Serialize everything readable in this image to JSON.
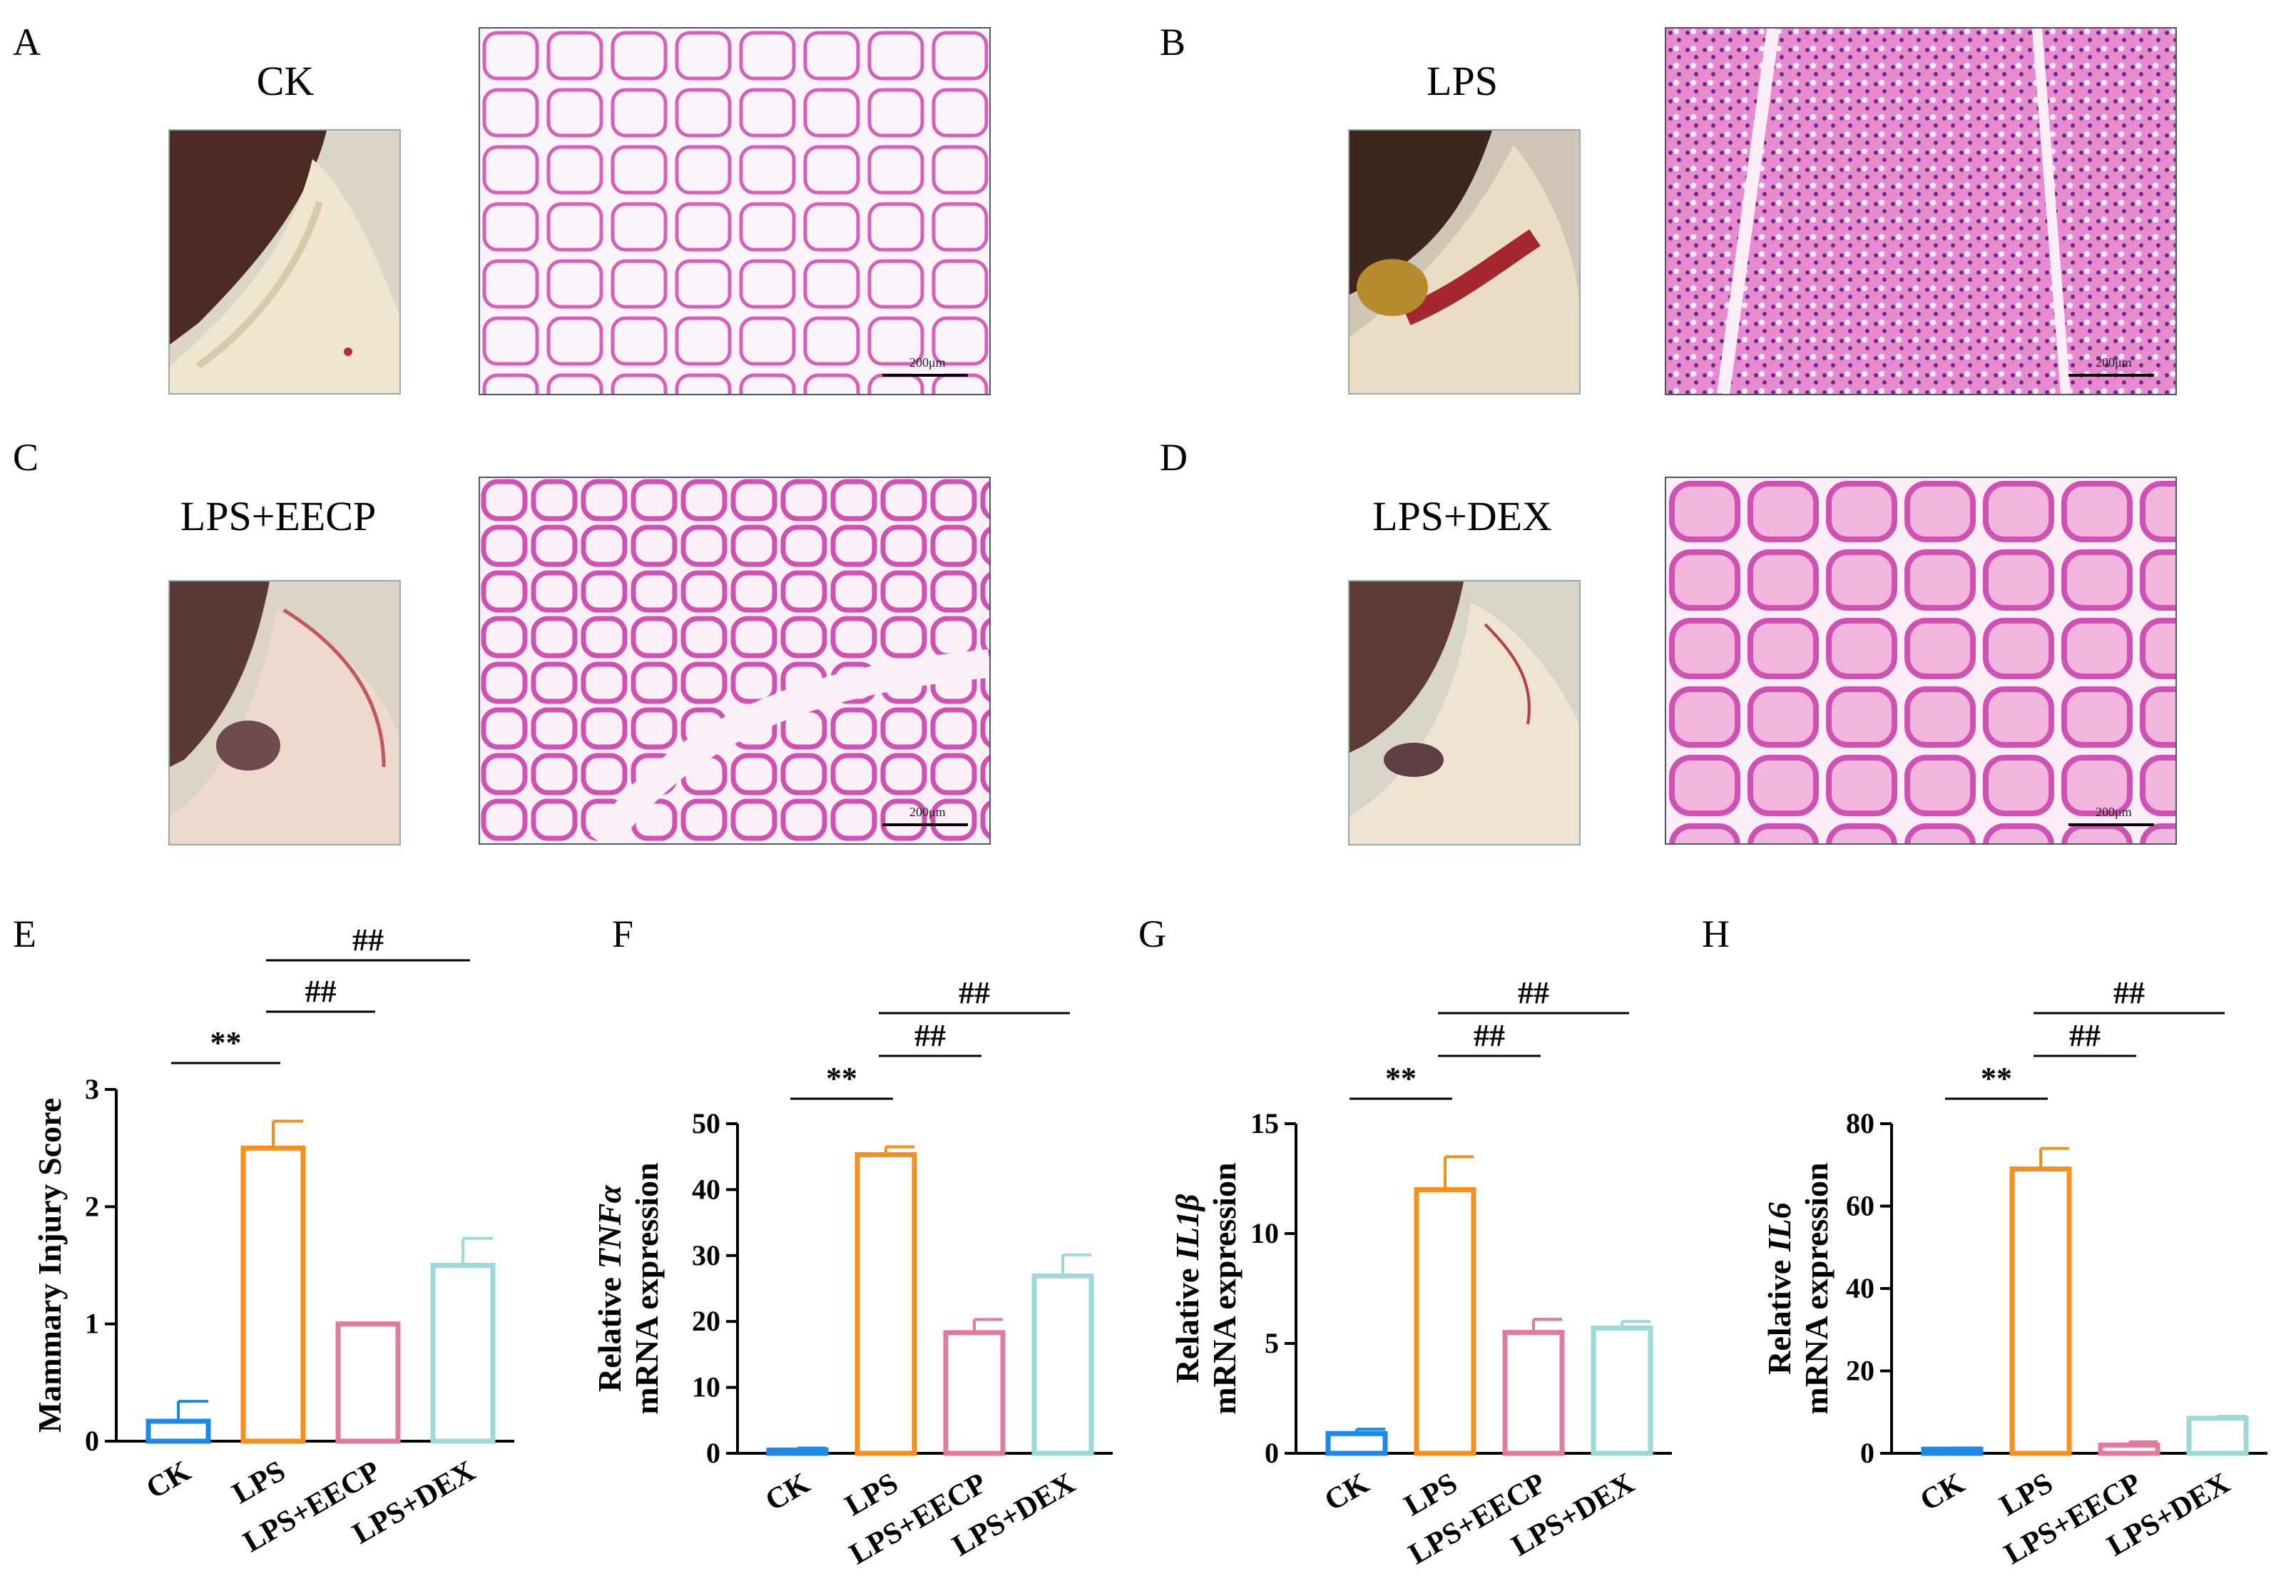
{
  "panels": {
    "A": {
      "letter": "A",
      "group": "CK",
      "scale": "200μm"
    },
    "B": {
      "letter": "B",
      "group": "LPS",
      "scale": "200μm"
    },
    "C": {
      "letter": "C",
      "group": "LPS+EECP",
      "scale": "200μm"
    },
    "D": {
      "letter": "D",
      "group": "LPS+DEX",
      "scale": "200μm"
    }
  },
  "colors": {
    "CK": "#1e88e5",
    "LPS": "#f5901e",
    "LPS+EECP": "#e07aa0",
    "LPS+DEX": "#9fd8d8",
    "histo_bg": "#fbf2f8",
    "histo_stain": "#d65fb8",
    "photo_bg": "#d8d2c6"
  },
  "chart_data": [
    {
      "letter": "E",
      "type": "bar",
      "categories": [
        "CK",
        "LPS",
        "LPS+EECP",
        "LPS+DEX"
      ],
      "values": [
        0.17,
        2.5,
        1.0,
        1.5
      ],
      "errors": [
        0.17,
        0.23,
        0,
        0.23
      ],
      "ylabel_lines": [
        "Mammary Injury Score"
      ],
      "ylim": [
        0,
        3
      ],
      "yticks": [
        "0",
        "1",
        "2",
        "3"
      ],
      "significance": [
        {
          "text": "**",
          "from": 0,
          "to": 1,
          "level": 0
        },
        {
          "text": "##",
          "from": 1,
          "to": 2,
          "level": 1
        },
        {
          "text": "##",
          "from": 1,
          "to": 3,
          "level": 2
        }
      ]
    },
    {
      "letter": "F",
      "type": "bar",
      "categories": [
        "CK",
        "LPS",
        "LPS+EECP",
        "LPS+DEX"
      ],
      "values": [
        0.5,
        45.3,
        18.3,
        26.9
      ],
      "errors": [
        0.3,
        1.2,
        2.0,
        3.2
      ],
      "ylabel_lines": [
        "Relative ",
        "TNFα",
        "mRNA expression"
      ],
      "ylim": [
        0,
        50
      ],
      "yticks": [
        "0",
        "10",
        "20",
        "30",
        "40",
        "50"
      ],
      "significance": [
        {
          "text": "**",
          "from": 0,
          "to": 1,
          "level": 0
        },
        {
          "text": "##",
          "from": 1,
          "to": 2,
          "level": 1
        },
        {
          "text": "##",
          "from": 1,
          "to": 3,
          "level": 2
        }
      ]
    },
    {
      "letter": "G",
      "type": "bar",
      "categories": [
        "CK",
        "LPS",
        "LPS+EECP",
        "LPS+DEX"
      ],
      "values": [
        0.9,
        12.0,
        5.5,
        5.7
      ],
      "errors": [
        0.2,
        1.5,
        0.6,
        0.3
      ],
      "ylabel_lines": [
        "Relative ",
        "IL1β",
        "mRNA expression"
      ],
      "ylim": [
        0,
        15
      ],
      "yticks": [
        "0",
        "5",
        "10",
        "15"
      ],
      "significance": [
        {
          "text": "**",
          "from": 0,
          "to": 1,
          "level": 0
        },
        {
          "text": "##",
          "from": 1,
          "to": 2,
          "level": 1
        },
        {
          "text": "##",
          "from": 1,
          "to": 3,
          "level": 2
        }
      ]
    },
    {
      "letter": "H",
      "type": "bar",
      "categories": [
        "CK",
        "LPS",
        "LPS+EECP",
        "LPS+DEX"
      ],
      "values": [
        1.0,
        69.0,
        2.0,
        8.5
      ],
      "errors": [
        0.3,
        5.0,
        0.8,
        0.5
      ],
      "ylabel_lines": [
        "Relative ",
        "IL6",
        "mRNA expression"
      ],
      "ylim": [
        0,
        80
      ],
      "yticks": [
        "0",
        "20",
        "40",
        "60",
        "80"
      ],
      "significance": [
        {
          "text": "**",
          "from": 0,
          "to": 1,
          "level": 0
        },
        {
          "text": "##",
          "from": 1,
          "to": 2,
          "level": 1
        },
        {
          "text": "##",
          "from": 1,
          "to": 3,
          "level": 2
        }
      ]
    }
  ]
}
